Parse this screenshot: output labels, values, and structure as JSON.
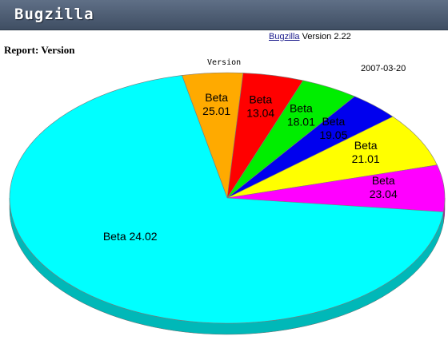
{
  "header": {
    "title": "Bugzilla"
  },
  "version_line": {
    "link": "Bugzilla",
    "text": "Version 2.22"
  },
  "report_title": "Report: Version",
  "chart_data": {
    "type": "pie",
    "title": "Version",
    "date": "2007-03-20",
    "categories": [
      "Beta 25.01",
      "Beta 13.04",
      "Beta 18.01",
      "Beta 19.05",
      "Beta 21.01",
      "Beta 23.04",
      "Beta 24.02"
    ],
    "values": [
      4.5,
      4.5,
      4.3,
      3.8,
      7.0,
      6.0,
      69.9
    ],
    "label_lines": [
      [
        "Beta",
        "25.01"
      ],
      [
        "Beta",
        "13.04"
      ],
      [
        "Beta",
        "18.01"
      ],
      [
        "Beta",
        "19.05"
      ],
      [
        "Beta",
        "21.01"
      ],
      [
        "Beta",
        "23.04"
      ],
      [
        "Beta 24.02"
      ]
    ],
    "colors": [
      "#ffaa00",
      "#ff0000",
      "#00ee00",
      "#0000ee",
      "#ffff00",
      "#ff00ff",
      "#00ffff"
    ]
  }
}
